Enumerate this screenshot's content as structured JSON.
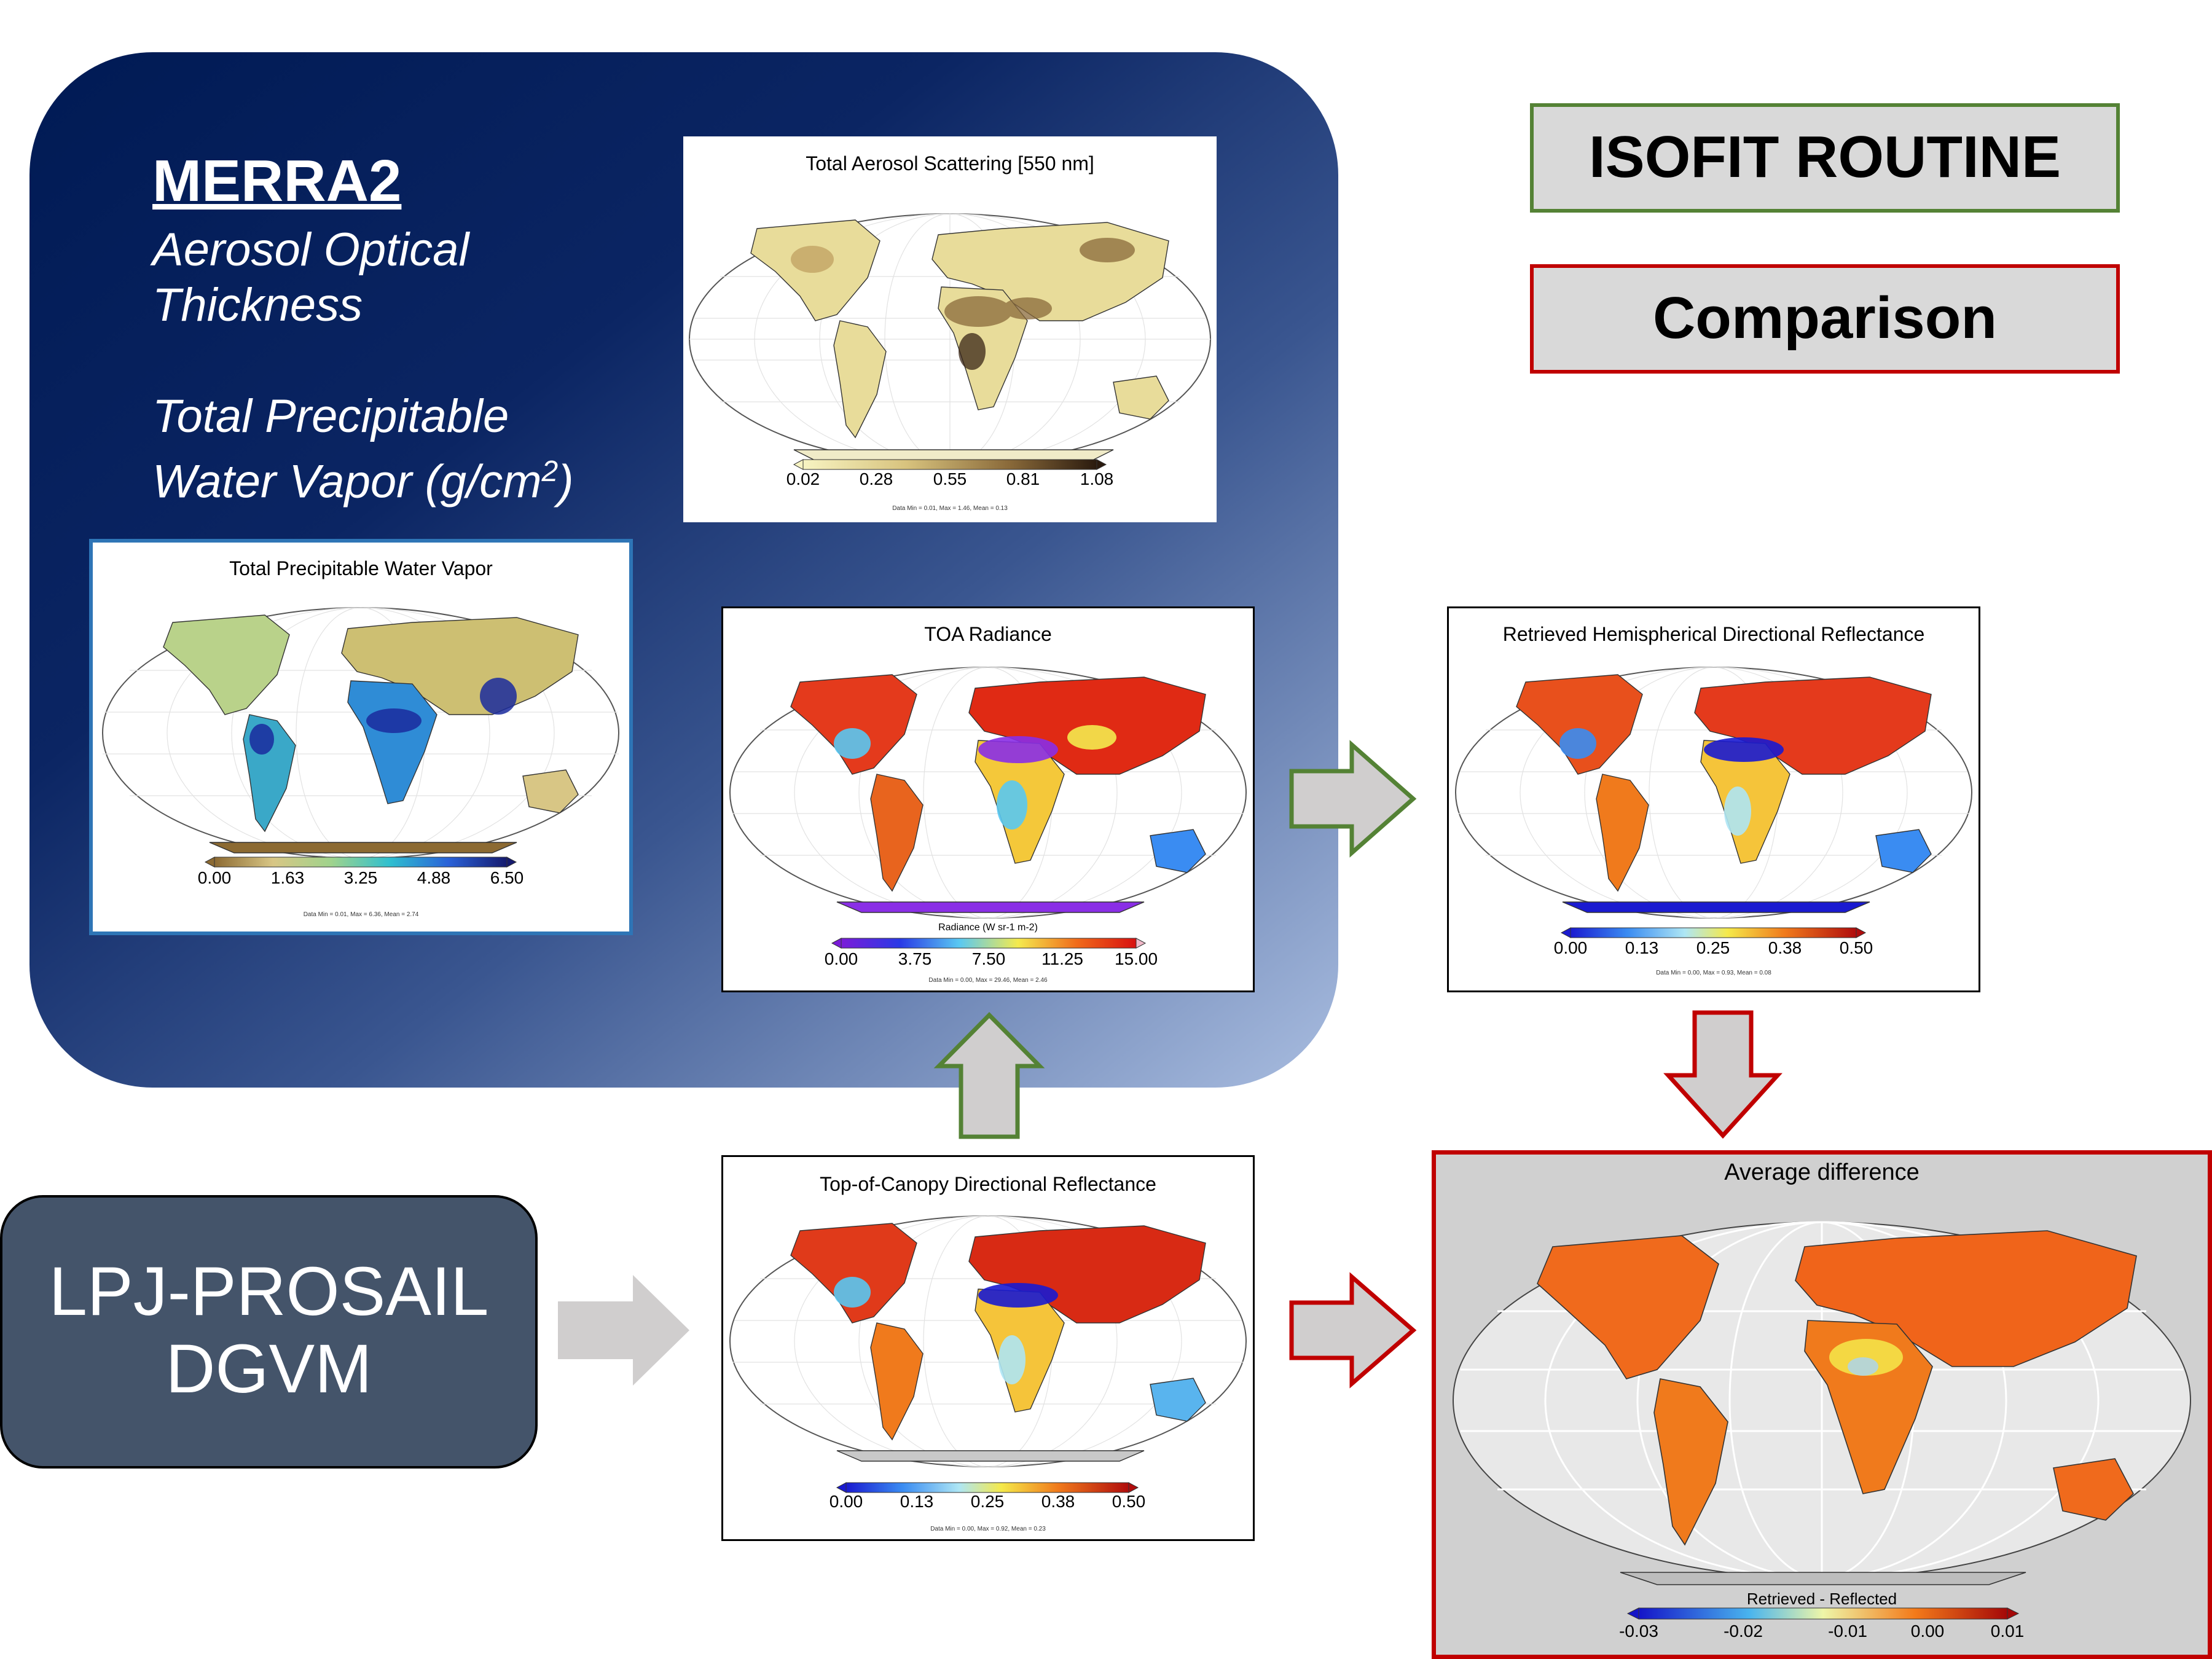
{
  "merra": {
    "title": "MERRA2",
    "line1": "Aerosol Optical",
    "line2": "Thickness",
    "line3": "Total Precipitable",
    "line4a": "Water Vapor (g/cm",
    "line4sup": "2",
    "line4b": ")"
  },
  "legend": {
    "isofit": "ISOFIT ROUTINE",
    "comparison": "Comparison"
  },
  "lpj": {
    "line1": "LPJ-PROSAIL",
    "line2": "DGVM"
  },
  "maps": {
    "aerosol": {
      "title": "Total Aerosol Scattering [550 nm]",
      "ticks": [
        "0.02",
        "0.28",
        "0.55",
        "0.81",
        "1.08"
      ],
      "note": "Data Min = 0.01, Max = 1.46, Mean = 0.13"
    },
    "water": {
      "title": "Total Precipitable Water Vapor",
      "ticks": [
        "0.00",
        "1.63",
        "3.25",
        "4.88",
        "6.50"
      ],
      "note": "Data Min = 0.01, Max = 6.36, Mean = 2.74"
    },
    "toa": {
      "title": "TOA Radiance",
      "cblabel": "Radiance (W sr-1 m-2)",
      "ticks": [
        "0.00",
        "3.75",
        "7.50",
        "11.25",
        "15.00"
      ],
      "note": "Data Min = 0.00, Max = 29.46, Mean = 2.46"
    },
    "retrieved": {
      "title": "Retrieved Hemispherical Directional Reflectance",
      "ticks": [
        "0.00",
        "0.13",
        "0.25",
        "0.38",
        "0.50"
      ],
      "note": "Data Min = 0.00, Max = 0.93, Mean = 0.08"
    },
    "toc": {
      "title": "Top-of-Canopy Directional Reflectance",
      "ticks": [
        "0.00",
        "0.13",
        "0.25",
        "0.38",
        "0.50"
      ],
      "note": "Data Min = 0.00, Max = 0.92, Mean = 0.23"
    },
    "diff": {
      "title": "Average difference",
      "cblabel": "Retrieved - Reflected",
      "ticks": [
        "-0.03",
        "-0.02",
        "-0.01",
        "0.00",
        "0.01"
      ]
    }
  },
  "colors": {
    "isofit_green": "#548235",
    "comparison_red": "#c00000",
    "gray_arrow": "#d0cece",
    "navy": "#001a54"
  }
}
